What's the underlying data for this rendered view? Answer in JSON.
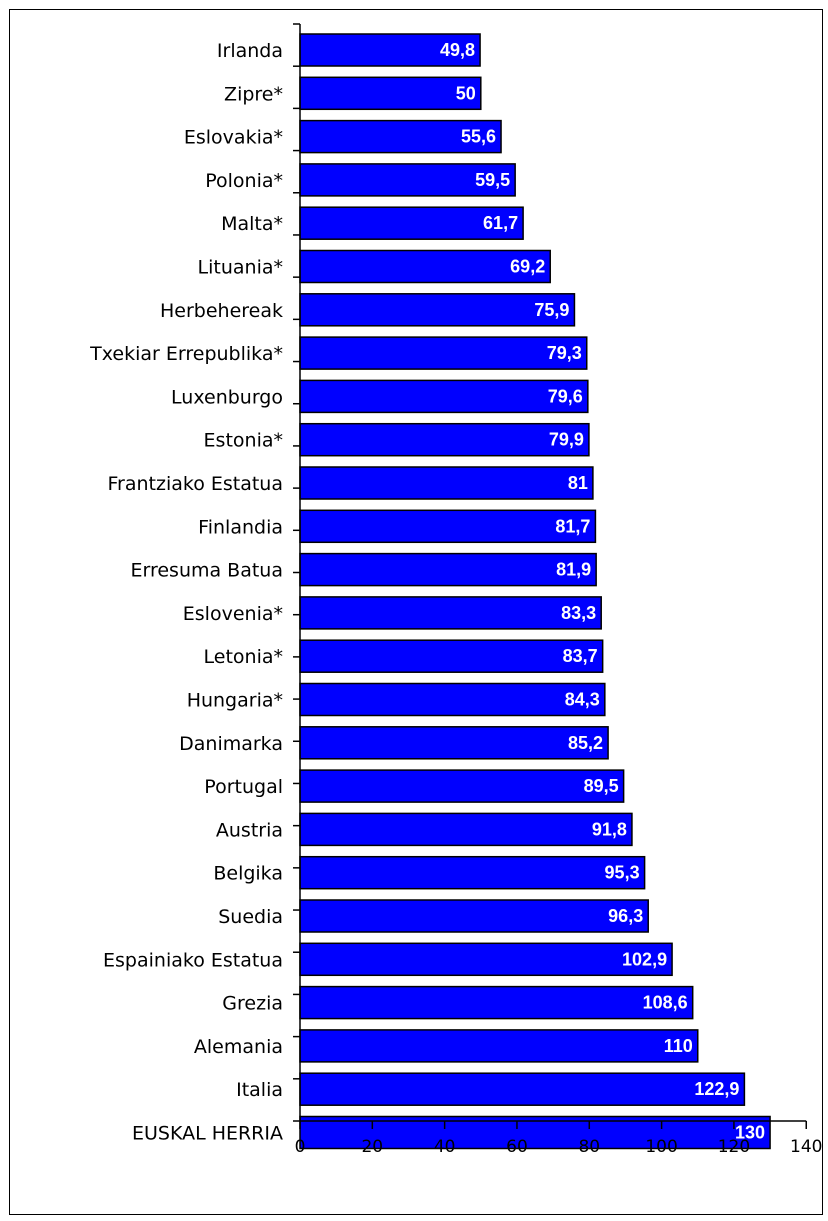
{
  "chart_data": {
    "type": "bar",
    "orientation": "horizontal",
    "categories": [
      "Irlanda",
      "Zipre*",
      "Eslovakia*",
      "Polonia*",
      "Malta*",
      "Lituania*",
      "Herbehereak",
      "Txekiar Errepublika*",
      "Luxenburgo",
      "Estonia*",
      "Frantziako Estatua",
      "Finlandia",
      "Erresuma Batua",
      "Eslovenia*",
      "Letonia*",
      "Hungaria*",
      "Danimarka",
      "Portugal",
      "Austria",
      "Belgika",
      "Suedia",
      "Espainiako Estatua",
      "Grezia",
      "Alemania",
      "Italia",
      "EUSKAL HERRIA"
    ],
    "values": [
      49.8,
      50,
      55.6,
      59.5,
      61.7,
      69.2,
      75.9,
      79.3,
      79.6,
      79.9,
      81,
      81.7,
      81.9,
      83.3,
      83.7,
      84.3,
      85.2,
      89.5,
      91.8,
      95.3,
      96.3,
      102.9,
      108.6,
      110,
      122.9,
      130
    ],
    "data_labels": [
      "49,8",
      "50",
      "55,6",
      "59,5",
      "61,7",
      "69,2",
      "75,9",
      "79,3",
      "79,6",
      "79,9",
      "81",
      "81,7",
      "81,9",
      "83,3",
      "83,7",
      "84,3",
      "85,2",
      "89,5",
      "91,8",
      "95,3",
      "96,3",
      "102,9",
      "108,6",
      "110",
      "122,9",
      "130"
    ],
    "xlim": [
      0,
      140
    ],
    "xticks": [
      0,
      20,
      40,
      60,
      80,
      100,
      120,
      140
    ],
    "title": "",
    "xlabel": "",
    "ylabel": "",
    "grid": false,
    "legend": "none",
    "bar_color": "#0000ff",
    "bar_edge_color": "#000000",
    "label_color": "#ffffff"
  }
}
